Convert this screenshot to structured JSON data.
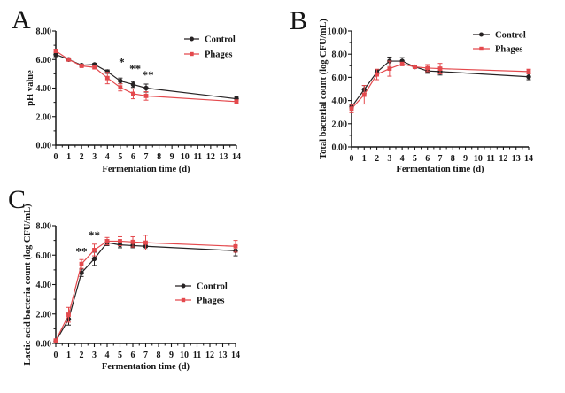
{
  "figure": {
    "ink": "#161616",
    "control_color": "#262223",
    "phages_color": "#e4494d",
    "background": "#ffffff"
  },
  "chart_data": [
    {
      "panel": "A",
      "type": "line",
      "title": "",
      "xlabel": "Fermentation time (d)",
      "ylabel": "pH value",
      "xlim": [
        0,
        14
      ],
      "ylim": [
        0,
        8
      ],
      "xticks": [
        0,
        1,
        2,
        3,
        4,
        5,
        6,
        7,
        8,
        9,
        10,
        11,
        12,
        13,
        14
      ],
      "xtick_labels": [
        "0",
        "1",
        "2",
        "3",
        "4",
        "5",
        "6",
        "7",
        "8",
        "9",
        "10",
        "11",
        "12",
        "13",
        "14"
      ],
      "yticks": [
        0,
        2,
        4,
        6,
        8
      ],
      "ytick_labels": [
        "0.00",
        "2.00",
        "4.00",
        "6.00",
        "8.00"
      ],
      "grid": false,
      "legend_position": "top-right-inside",
      "x": [
        0,
        1,
        2,
        3,
        4,
        5,
        6,
        7,
        14
      ],
      "series": [
        {
          "name": "Control",
          "color": "#262223",
          "marker": "circle",
          "values": [
            6.35,
            6.0,
            5.6,
            5.65,
            5.15,
            4.5,
            4.25,
            4.0,
            3.25
          ],
          "errors": [
            0.15,
            0.1,
            0.08,
            0.08,
            0.12,
            0.2,
            0.2,
            0.28,
            0.15
          ]
        },
        {
          "name": "Phages",
          "color": "#e4494d",
          "marker": "square",
          "values": [
            6.6,
            6.0,
            5.55,
            5.45,
            4.7,
            4.05,
            3.6,
            3.45,
            3.05
          ],
          "errors": [
            0.12,
            0.1,
            0.08,
            0.1,
            0.4,
            0.25,
            0.35,
            0.3,
            0.12
          ]
        }
      ],
      "annotations": [
        {
          "x": 5.1,
          "y": 5.55,
          "text": "*"
        },
        {
          "x": 6.15,
          "y": 5.1,
          "text": "**"
        },
        {
          "x": 7.15,
          "y": 4.65,
          "text": "**"
        }
      ]
    },
    {
      "panel": "B",
      "type": "line",
      "title": "",
      "xlabel": "Fermentation time (d)",
      "ylabel": "Total bacterial count (log CFU/mL)",
      "xlim": [
        0,
        14
      ],
      "ylim": [
        0,
        10
      ],
      "xticks": [
        0,
        1,
        2,
        3,
        4,
        5,
        6,
        7,
        8,
        9,
        10,
        11,
        12,
        13,
        14
      ],
      "xtick_labels": [
        "0",
        "1",
        "2",
        "3",
        "4",
        "5",
        "6",
        "7",
        "8",
        "9",
        "10",
        "11",
        "12",
        "13",
        "14"
      ],
      "yticks": [
        0,
        2,
        4,
        6,
        8,
        10
      ],
      "ytick_labels": [
        "0.00",
        "2.00",
        "4.00",
        "6.00",
        "8.00",
        "10.00"
      ],
      "grid": false,
      "legend_position": "top-right-inside",
      "x": [
        0,
        1,
        2,
        3,
        4,
        5,
        6,
        7,
        14
      ],
      "series": [
        {
          "name": "Control",
          "color": "#262223",
          "marker": "circle",
          "values": [
            3.45,
            4.95,
            6.45,
            7.4,
            7.4,
            6.9,
            6.55,
            6.5,
            6.05
          ],
          "errors": [
            0.15,
            0.35,
            0.2,
            0.35,
            0.3,
            0.1,
            0.2,
            0.3,
            0.25
          ]
        },
        {
          "name": "Phages",
          "color": "#e4494d",
          "marker": "square",
          "values": [
            3.3,
            4.5,
            6.25,
            6.75,
            7.15,
            6.9,
            6.8,
            6.75,
            6.5
          ],
          "errors": [
            0.35,
            0.8,
            0.45,
            0.65,
            0.15,
            0.1,
            0.3,
            0.45,
            0.2
          ]
        }
      ],
      "annotations": []
    },
    {
      "panel": "C",
      "type": "line",
      "title": "",
      "xlabel": "Fermentation time (d)",
      "ylabel": "Lactic acid bacteria count (log CFU/mL)",
      "xlim": [
        0,
        14
      ],
      "ylim": [
        0,
        8
      ],
      "xticks": [
        0,
        1,
        2,
        3,
        4,
        5,
        6,
        7,
        8,
        9,
        10,
        11,
        12,
        13,
        14
      ],
      "xtick_labels": [
        "0",
        "1",
        "2",
        "3",
        "4",
        "5",
        "6",
        "7",
        "8",
        "9",
        "10",
        "11",
        "12",
        "13",
        "14"
      ],
      "yticks": [
        0,
        2,
        4,
        6,
        8
      ],
      "ytick_labels": [
        "0.00",
        "2.00",
        "4.00",
        "6.00",
        "8.00"
      ],
      "grid": false,
      "legend_position": "middle-right-inside",
      "x": [
        0,
        1,
        2,
        3,
        4,
        5,
        6,
        7,
        14
      ],
      "series": [
        {
          "name": "Control",
          "color": "#262223",
          "marker": "circle",
          "values": [
            0.15,
            1.65,
            4.8,
            5.75,
            6.85,
            6.7,
            6.65,
            6.6,
            6.3
          ],
          "errors": [
            0.1,
            0.4,
            0.25,
            0.45,
            0.2,
            0.2,
            0.15,
            0.25,
            0.35
          ]
        },
        {
          "name": "Phages",
          "color": "#e4494d",
          "marker": "square",
          "values": [
            0.2,
            1.95,
            5.4,
            6.35,
            6.95,
            6.95,
            6.9,
            6.85,
            6.6
          ],
          "errors": [
            0.1,
            0.5,
            0.3,
            0.4,
            0.25,
            0.3,
            0.35,
            0.5,
            0.4
          ]
        }
      ],
      "annotations": [
        {
          "x": 2,
          "y": 6.0,
          "text": "**"
        },
        {
          "x": 3,
          "y": 7.1,
          "text": "**"
        }
      ]
    }
  ]
}
